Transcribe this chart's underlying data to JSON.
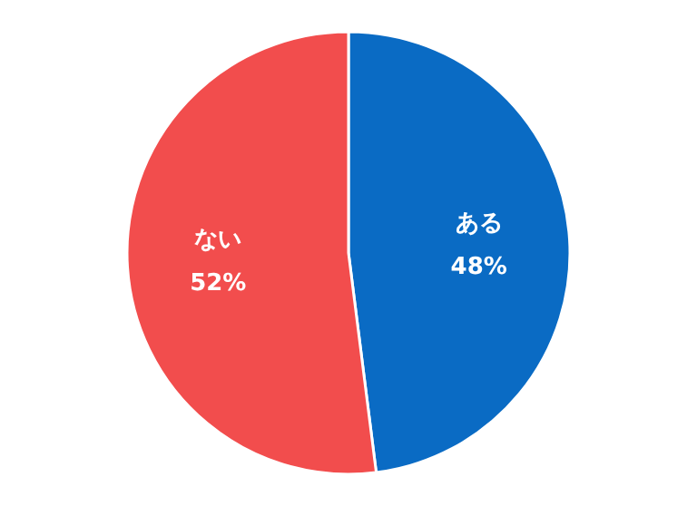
{
  "chart_data": {
    "type": "pie",
    "categories": [
      "ある",
      "ない"
    ],
    "values": [
      48,
      52
    ],
    "colors": [
      "#0a6bc4",
      "#f24d4d"
    ],
    "value_labels": [
      "48%",
      "52%"
    ]
  }
}
